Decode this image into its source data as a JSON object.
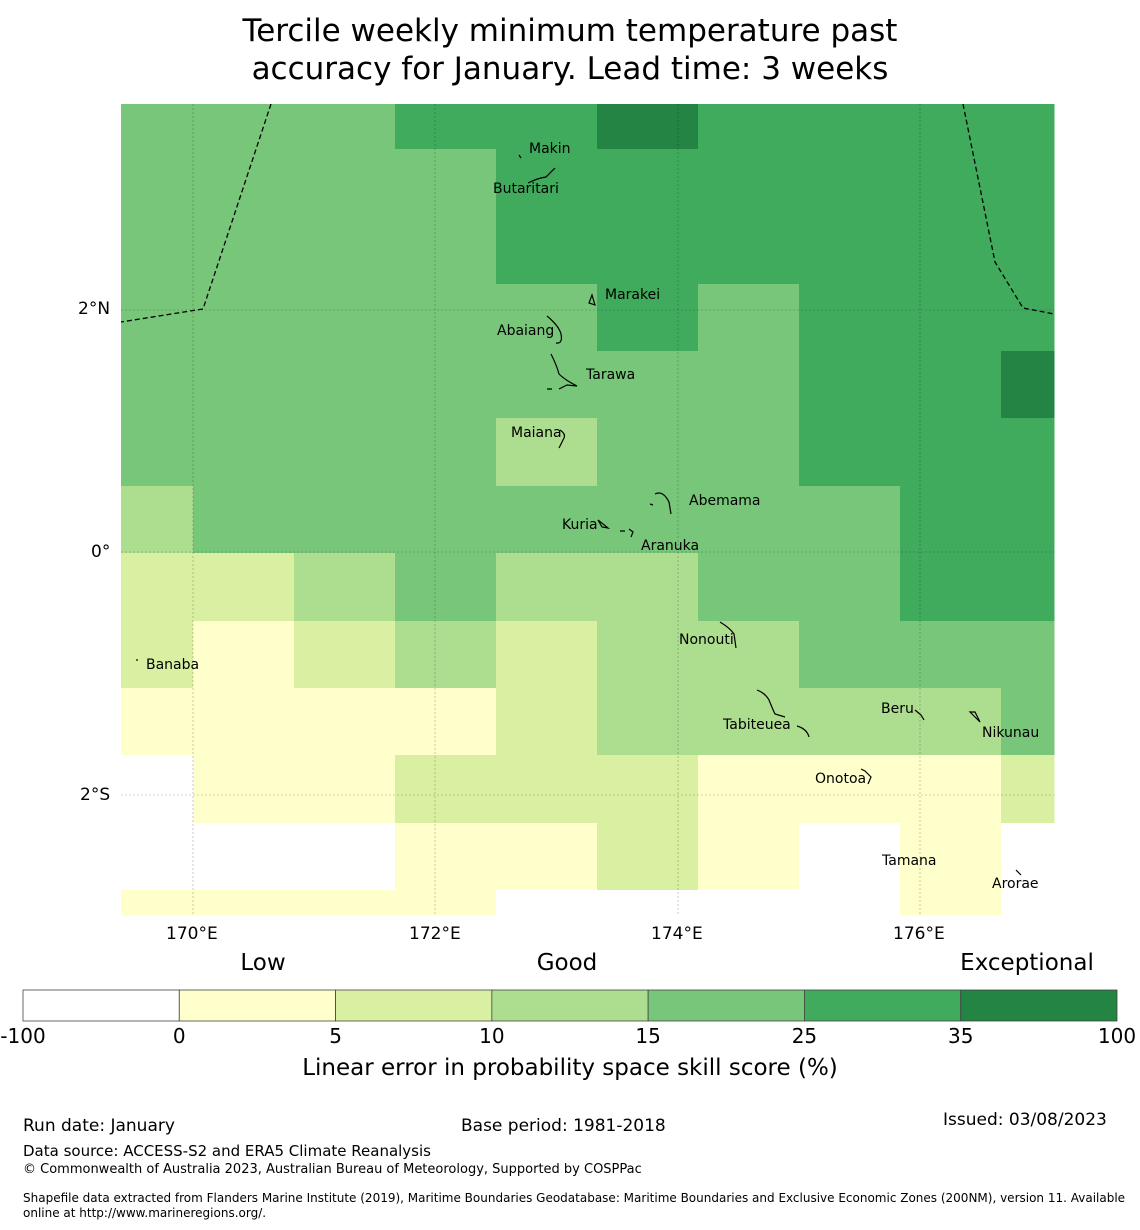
{
  "title_line1": "Tercile weekly minimum temperature past",
  "title_line2": "accuracy for January. Lead time: 3 weeks",
  "map": {
    "lon_ticks": [
      "170°E",
      "172°E",
      "174°E",
      "176°E"
    ],
    "lat_ticks": [
      "2°N",
      "0°",
      "2°S"
    ],
    "islands": [
      "Makin",
      "Butaritari",
      "Marakei",
      "Abaiang",
      "Tarawa",
      "Maiana",
      "Abemama",
      "Kuria",
      "Aranuka",
      "Nonouti",
      "Banaba",
      "Tabiteuea",
      "Beru",
      "Nikunau",
      "Onotoa",
      "Tamana",
      "Arorae"
    ],
    "grid_bins": [
      [
        4,
        4,
        4,
        5,
        5,
        6,
        5,
        5,
        5,
        5
      ],
      [
        4,
        4,
        4,
        4,
        5,
        5,
        5,
        5,
        5,
        5
      ],
      [
        4,
        4,
        4,
        4,
        5,
        5,
        5,
        5,
        5,
        5
      ],
      [
        4,
        4,
        4,
        4,
        4,
        5,
        4,
        5,
        5,
        5
      ],
      [
        4,
        4,
        4,
        4,
        4,
        4,
        4,
        5,
        5,
        6
      ],
      [
        4,
        4,
        4,
        4,
        3,
        4,
        4,
        5,
        5,
        5
      ],
      [
        3,
        4,
        4,
        4,
        4,
        4,
        4,
        4,
        5,
        5
      ],
      [
        2,
        2,
        3,
        4,
        3,
        3,
        4,
        4,
        5,
        5
      ],
      [
        2,
        1,
        2,
        3,
        2,
        3,
        3,
        4,
        4,
        4
      ],
      [
        1,
        1,
        1,
        1,
        2,
        3,
        3,
        3,
        3,
        4
      ],
      [
        0,
        1,
        1,
        2,
        2,
        2,
        1,
        1,
        1,
        2
      ],
      [
        0,
        0,
        0,
        1,
        1,
        2,
        1,
        0,
        1,
        0
      ],
      [
        1,
        1,
        1,
        1,
        0,
        0,
        0,
        0,
        1,
        0
      ]
    ]
  },
  "colorbar": {
    "categories": [
      "Low",
      "Good",
      "Exceptional"
    ],
    "ticks": [
      "-100",
      "0",
      "5",
      "10",
      "15",
      "25",
      "35",
      "100"
    ],
    "colors": [
      "#ffffff",
      "#ffffcc",
      "#d9f0a3",
      "#addd8e",
      "#78c679",
      "#41ab5d",
      "#238443"
    ],
    "label": "Linear error in probability space skill score (%)"
  },
  "footer": {
    "run_date": "Run date: January",
    "base_period": "Base period: 1981-2018",
    "issued": "Issued: 03/08/2023",
    "data_source": "Data source: ACCESS-S2 and ERA5 Climate Reanalysis",
    "copyright": "© Commonwealth of Australia 2023, Australian Bureau of Meteorology, Supported by COSPPac",
    "shapefile_line1": "Shapefile data extracted from Flanders Marine Institute (2019), Maritime Boundaries Geodatabase: Maritime Boundaries and Exclusive Economic Zones (200NM), version 11. Available",
    "shapefile_line2": "online at http://www.marineregions.org/."
  }
}
